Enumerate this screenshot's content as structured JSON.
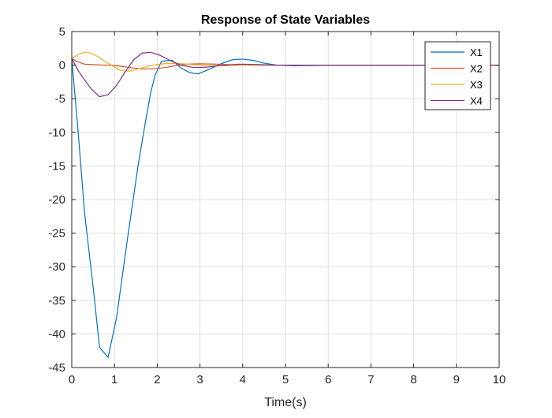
{
  "chart_data": {
    "type": "line",
    "title": "Response of State Variables",
    "xlabel": "Time(s)",
    "ylabel": "",
    "xlim": [
      0,
      10
    ],
    "ylim": [
      -45,
      5
    ],
    "xticks": [
      0,
      1,
      2,
      3,
      4,
      5,
      6,
      7,
      8,
      9,
      10
    ],
    "yticks": [
      5,
      0,
      -5,
      -10,
      -15,
      -20,
      -25,
      -30,
      -35,
      -40,
      -45
    ],
    "grid": true,
    "legend_position": "top-right",
    "series": [
      {
        "name": "X1",
        "color": "#0072BD",
        "points": [
          [
            0,
            1
          ],
          [
            0.15,
            -10
          ],
          [
            0.3,
            -22
          ],
          [
            0.5,
            -33
          ],
          [
            0.65,
            -42
          ],
          [
            0.85,
            -43.5
          ],
          [
            1.05,
            -37.5
          ],
          [
            1.3,
            -26
          ],
          [
            1.55,
            -15
          ],
          [
            1.75,
            -7.5
          ],
          [
            1.85,
            -4
          ],
          [
            1.95,
            -1.5
          ],
          [
            2.1,
            0.6
          ],
          [
            2.35,
            0.7
          ],
          [
            2.55,
            -0.4
          ],
          [
            2.75,
            -1.1
          ],
          [
            2.95,
            -1.3
          ],
          [
            3.15,
            -0.8
          ],
          [
            3.45,
            0.1
          ],
          [
            3.75,
            0.8
          ],
          [
            4.0,
            0.9
          ],
          [
            4.25,
            0.7
          ],
          [
            4.5,
            0.3
          ],
          [
            4.8,
            0
          ],
          [
            5.2,
            -0.1
          ],
          [
            5.7,
            -0.05
          ],
          [
            6.2,
            0
          ],
          [
            7,
            0
          ],
          [
            8,
            0
          ],
          [
            9,
            0
          ],
          [
            10,
            0
          ]
        ]
      },
      {
        "name": "X2",
        "color": "#D95319",
        "points": [
          [
            0,
            1
          ],
          [
            0.1,
            0.6
          ],
          [
            0.3,
            0.15
          ],
          [
            0.6,
            0.05
          ],
          [
            1.0,
            -0.05
          ],
          [
            1.3,
            -0.3
          ],
          [
            1.6,
            -0.55
          ],
          [
            1.9,
            -0.55
          ],
          [
            2.2,
            -0.35
          ],
          [
            2.45,
            -0.05
          ],
          [
            2.7,
            0.15
          ],
          [
            3.0,
            0.2
          ],
          [
            3.4,
            0.15
          ],
          [
            3.8,
            0.05
          ],
          [
            4.2,
            0
          ],
          [
            5,
            0
          ],
          [
            6,
            0
          ],
          [
            7,
            0
          ],
          [
            8,
            0
          ],
          [
            9,
            0
          ],
          [
            10,
            0
          ]
        ]
      },
      {
        "name": "X3",
        "color": "#EDB120",
        "points": [
          [
            0,
            1
          ],
          [
            0.15,
            1.6
          ],
          [
            0.3,
            1.9
          ],
          [
            0.45,
            1.8
          ],
          [
            0.6,
            1.3
          ],
          [
            0.8,
            0.5
          ],
          [
            1.0,
            -0.3
          ],
          [
            1.15,
            -0.8
          ],
          [
            1.35,
            -0.9
          ],
          [
            1.55,
            -0.6
          ],
          [
            1.75,
            -0.2
          ],
          [
            2.0,
            0.1
          ],
          [
            2.2,
            0.25
          ],
          [
            2.5,
            0.25
          ],
          [
            2.8,
            0.1
          ],
          [
            3.2,
            -0.05
          ],
          [
            3.6,
            -0.1
          ],
          [
            4.0,
            0
          ],
          [
            5,
            0
          ],
          [
            6,
            0
          ],
          [
            7,
            0
          ],
          [
            8,
            0
          ],
          [
            9,
            0
          ],
          [
            10,
            0
          ]
        ]
      },
      {
        "name": "X4",
        "color": "#7E2F8E",
        "points": [
          [
            0,
            1
          ],
          [
            0.15,
            -0.8
          ],
          [
            0.3,
            -2.2
          ],
          [
            0.45,
            -3.5
          ],
          [
            0.65,
            -4.7
          ],
          [
            0.85,
            -4.4
          ],
          [
            1.05,
            -3.0
          ],
          [
            1.25,
            -1.0
          ],
          [
            1.45,
            0.8
          ],
          [
            1.65,
            1.8
          ],
          [
            1.85,
            1.9
          ],
          [
            2.05,
            1.5
          ],
          [
            2.3,
            0.7
          ],
          [
            2.55,
            0
          ],
          [
            2.85,
            -0.35
          ],
          [
            3.15,
            -0.3
          ],
          [
            3.5,
            -0.05
          ],
          [
            3.9,
            0.15
          ],
          [
            4.3,
            0.1
          ],
          [
            4.8,
            0
          ],
          [
            5.5,
            0
          ],
          [
            6.5,
            0
          ],
          [
            7,
            0
          ],
          [
            8,
            0
          ],
          [
            9,
            0
          ],
          [
            10,
            0
          ]
        ]
      }
    ]
  }
}
